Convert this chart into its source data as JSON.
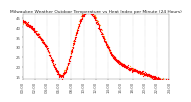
{
  "title": "Milwaukee Weather Outdoor Temperature vs Heat Index per Minute (24 Hours)",
  "bg_color": "#ffffff",
  "temp_color": "#ff0000",
  "heat_color": "#ff8800",
  "ylim": [
    14,
    47
  ],
  "yticks": [
    15,
    20,
    25,
    30,
    35,
    40,
    45
  ],
  "xlim": [
    0,
    1440
  ],
  "xtick_interval": 120,
  "grid_color": "#aaaaaa",
  "dot_size": 0.8,
  "title_fontsize": 3.2,
  "tick_fontsize": 2.8,
  "spine_color": "#888888",
  "tick_color": "#555555"
}
